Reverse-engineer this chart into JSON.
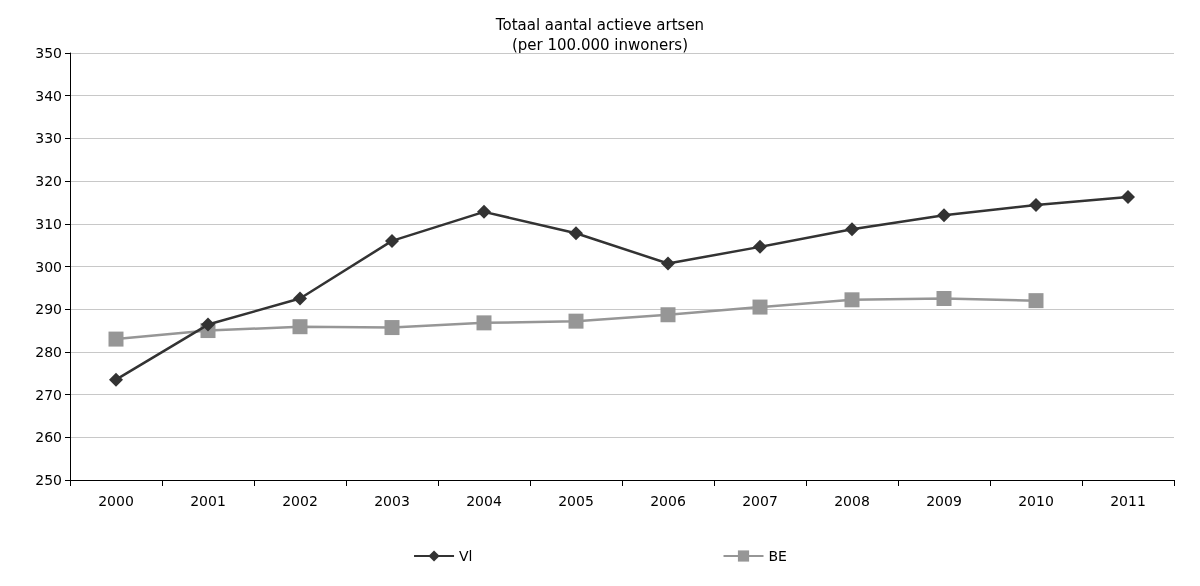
{
  "chart_data": {
    "type": "line",
    "title": "Totaal aantal actieve artsen\n(per 100.000 inwoners)",
    "categories": [
      "2000",
      "2001",
      "2002",
      "2003",
      "2004",
      "2005",
      "2006",
      "2007",
      "2008",
      "2009",
      "2010",
      "2011"
    ],
    "series": [
      {
        "name": "Vl",
        "color": "#333333",
        "marker": "diamond",
        "values": [
          273.5,
          286.4,
          292.5,
          306,
          312.8,
          307.8,
          300.7,
          304.6,
          308.7,
          312,
          314.4,
          316.3
        ]
      },
      {
        "name": "BE",
        "color": "#969696",
        "marker": "square",
        "values": [
          283,
          285,
          285.9,
          285.7,
          286.8,
          287.2,
          288.7,
          290.5,
          292.2,
          292.5,
          292,
          null
        ]
      }
    ],
    "ylim": [
      250,
      350
    ],
    "yticks": [
      250,
      260,
      270,
      280,
      290,
      300,
      310,
      320,
      330,
      340,
      350
    ],
    "grid": "y",
    "legend": "bottom"
  }
}
